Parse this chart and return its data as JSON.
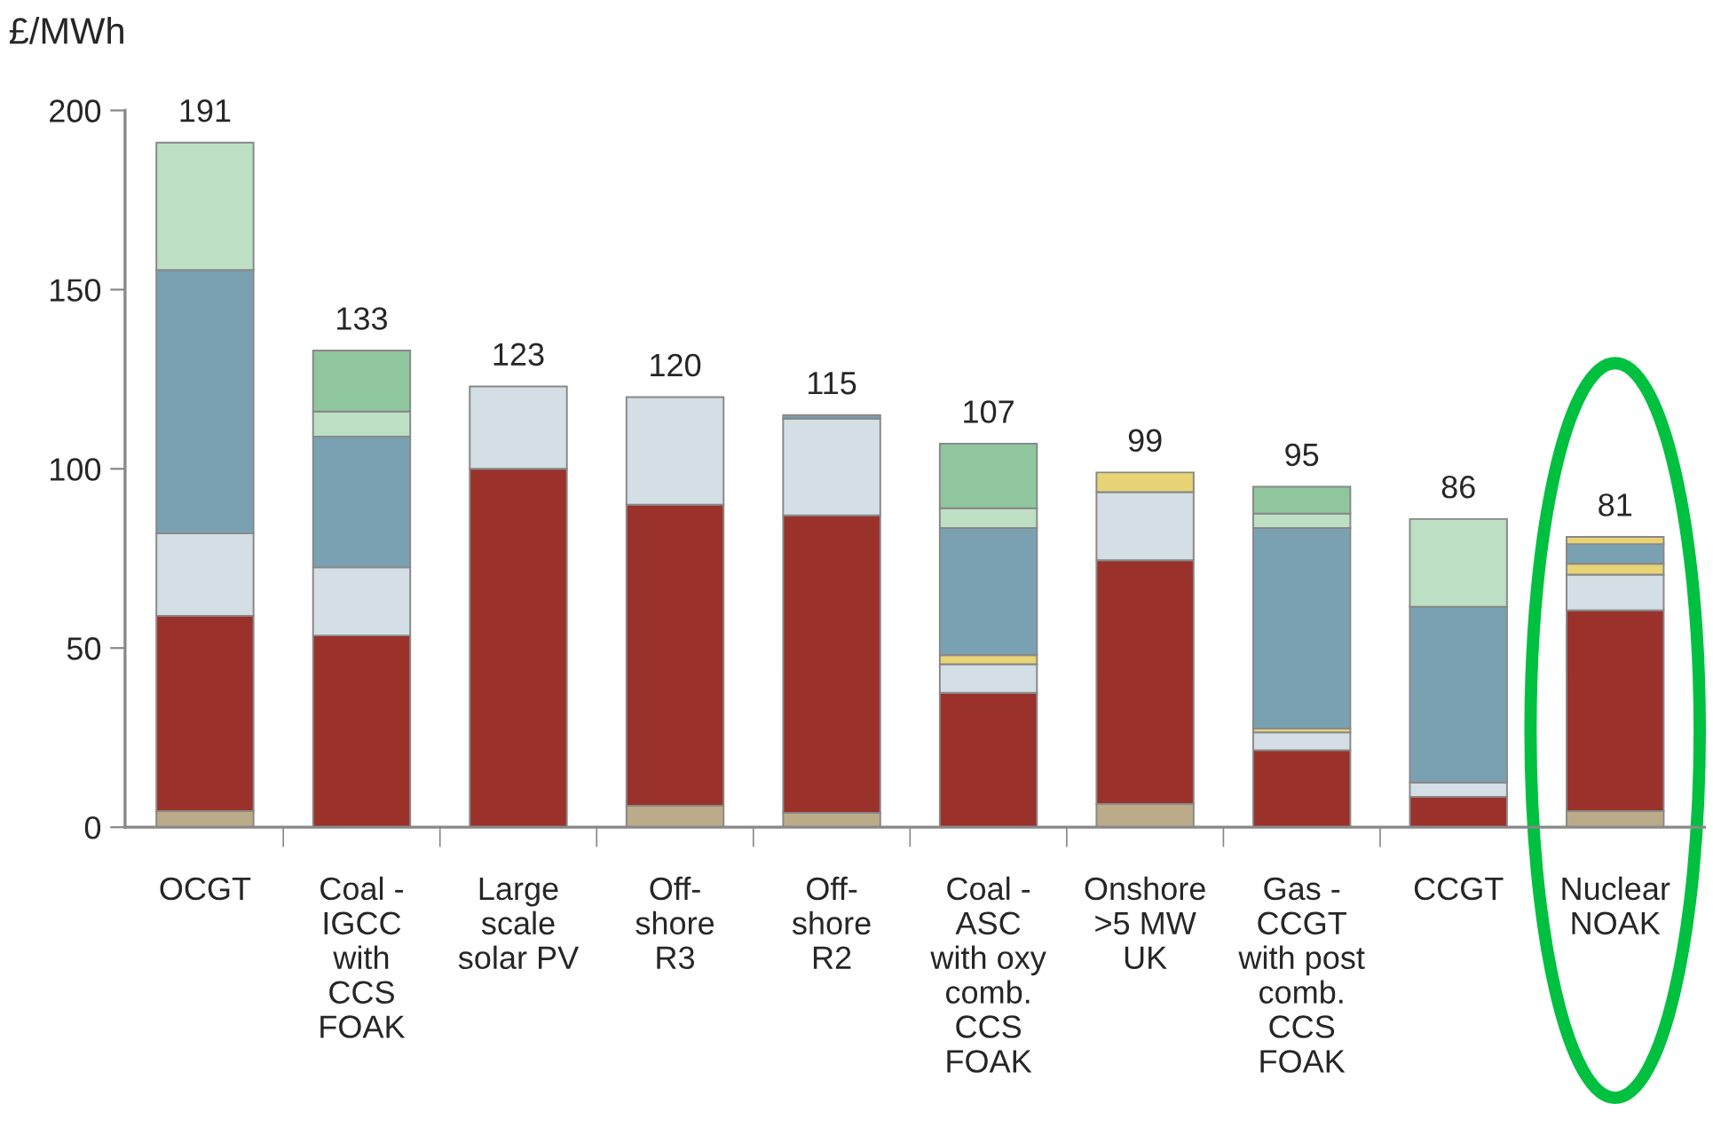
{
  "chart_data": {
    "type": "bar",
    "stacked": true,
    "ylabel": "£/MWh",
    "categories": [
      "OCGT",
      "Coal -\nIGCC\nwith\nCCS\nFOAK",
      "Large\nscale\nsolar PV",
      "Off-\nshore\nR3",
      "Off-\nshore\nR2",
      "Coal -\nASC\nwith oxy\ncomb.\nCCS\nFOAK",
      "Onshore\n>5 MW\nUK",
      "Gas -\nCCGT\nwith post\ncomb.\nCCS\nFOAK",
      "CCGT",
      "Nuclear\nNOAK"
    ],
    "series": [
      {
        "color": "#bcab88",
        "values": [
          4.5,
          null,
          null,
          6,
          4,
          null,
          6.5,
          null,
          null,
          4.5
        ]
      },
      {
        "color": "#9a322b",
        "values": [
          54.5,
          53.5,
          100,
          84,
          83,
          37.5,
          68,
          21.5,
          8.5,
          56
        ]
      },
      {
        "color": "#d3dfe5",
        "values": [
          23,
          19,
          23,
          30,
          27,
          8,
          19,
          5,
          4,
          10
        ]
      },
      {
        "color": "#e8d474",
        "values": [
          null,
          null,
          null,
          null,
          null,
          2.5,
          5.5,
          1,
          null,
          3
        ]
      },
      {
        "color": "#7aa1b2",
        "values": [
          73.5,
          36.5,
          null,
          null,
          1,
          35.5,
          null,
          56,
          49,
          5.5
        ]
      },
      {
        "color": "#bde0c4",
        "values": [
          35.5,
          7,
          null,
          null,
          null,
          5.5,
          null,
          4,
          24.5,
          null
        ]
      },
      {
        "color": "#90c69e",
        "values": [
          null,
          17,
          null,
          null,
          null,
          18,
          null,
          7.5,
          null,
          null
        ]
      },
      {
        "color": "#e8d474",
        "values": [
          null,
          null,
          null,
          null,
          null,
          null,
          null,
          null,
          null,
          2
        ]
      }
    ],
    "totals": [
      "191",
      "133",
      "123",
      "120",
      "115",
      "107",
      "99",
      "95",
      "86",
      "81"
    ],
    "ylim": [
      0,
      200
    ],
    "yticks": [
      0,
      50,
      100,
      150,
      200
    ],
    "grid": false,
    "legend": false
  }
}
